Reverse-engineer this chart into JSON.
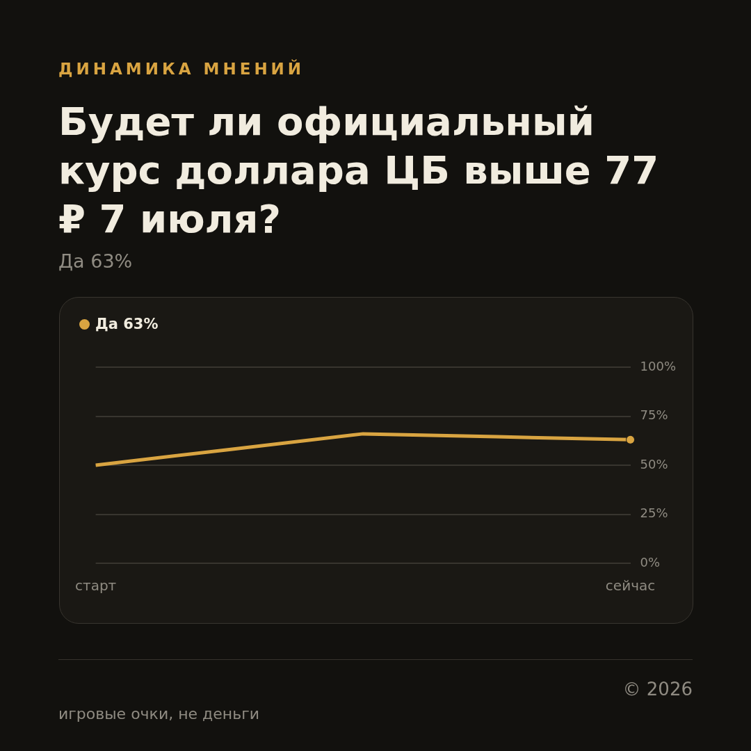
{
  "chart_data": {
    "type": "line",
    "subtitle": "ДИНАМИКА МНЕНИЙ",
    "title": "Будет ли официальный курс доллара ЦБ выше 77 ₽ 7 июля?",
    "annotations": [
      "Да 63%",
      "© 2026",
      "игровые очки, не деньги"
    ],
    "categories": [
      "старт",
      null,
      null,
      null,
      "сейчас"
    ],
    "series": [
      {
        "name": "Да 63%",
        "color": "#d9a441",
        "values": [
          50,
          58,
          66,
          64.5,
          63
        ]
      }
    ],
    "ylim": [
      0,
      100
    ],
    "yticks": [
      {
        "value": 0,
        "label": "0%"
      },
      {
        "value": 25,
        "label": "25%"
      },
      {
        "value": 50,
        "label": "50%"
      },
      {
        "value": 75,
        "label": "75%"
      },
      {
        "value": 100,
        "label": "100%"
      }
    ],
    "grid": "y",
    "legend": "top left"
  }
}
